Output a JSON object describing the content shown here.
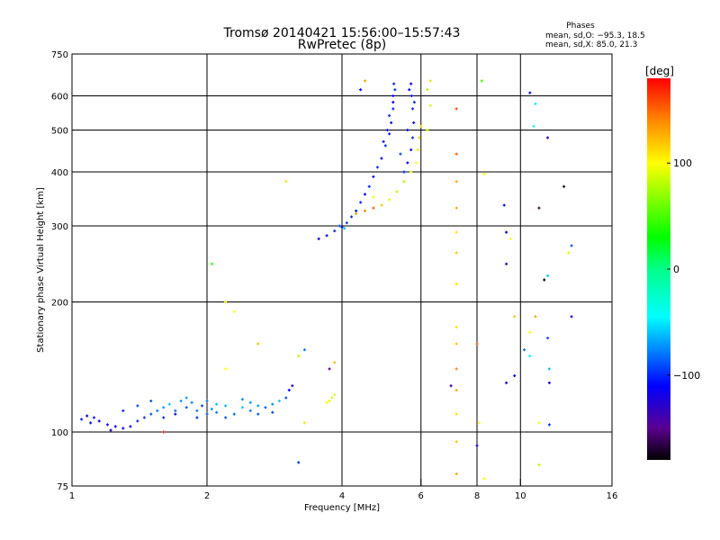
{
  "chart_data": {
    "type": "scatter",
    "title": "Tromsø 20140421 15:56:00–15:57:43",
    "subtitle": "RwPretec (8p)",
    "xlabel": "Frequency [MHz]",
    "ylabel": "Stationary phase Virtual Height [km]",
    "xscale": "log",
    "yscale": "log",
    "xlim": [
      1,
      16
    ],
    "ylim": [
      75,
      750
    ],
    "xticks": [
      1,
      2,
      4,
      6,
      8,
      10,
      16
    ],
    "yticks": [
      75,
      100,
      200,
      300,
      400,
      500,
      600,
      750
    ],
    "xgrid": [
      2,
      4,
      6,
      8,
      10
    ],
    "ygrid": [
      100,
      200,
      300,
      400,
      500,
      600
    ],
    "grid": true,
    "legend": {
      "title": "Phases",
      "lines": [
        "mean, sd,O: −95.3, 18.5",
        "mean, sd,X:  85.0, 21.3"
      ],
      "placement": "top-right"
    },
    "colorbar": {
      "label": "[deg]",
      "range": [
        -180,
        180
      ],
      "ticks": [
        100,
        0,
        -100
      ],
      "stops": [
        {
          "v": -180,
          "c": "#000000"
        },
        {
          "v": -150,
          "c": "#5a0090"
        },
        {
          "v": -110,
          "c": "#0000ff"
        },
        {
          "v": -45,
          "c": "#00ffff"
        },
        {
          "v": 0,
          "c": "#00ff88"
        },
        {
          "v": 30,
          "c": "#00ff00"
        },
        {
          "v": 100,
          "c": "#ffff00"
        },
        {
          "v": 140,
          "c": "#ff8800"
        },
        {
          "v": 180,
          "c": "#ff0000"
        }
      ]
    },
    "point_fields": [
      "frequency_MHz",
      "height_km",
      "phase_deg"
    ],
    "points": [
      [
        1.05,
        107,
        -100
      ],
      [
        1.08,
        109,
        -110
      ],
      [
        1.12,
        108,
        -105
      ],
      [
        1.15,
        106,
        -110
      ],
      [
        1.2,
        104,
        -115
      ],
      [
        1.25,
        103,
        -115
      ],
      [
        1.3,
        102,
        -115
      ],
      [
        1.35,
        103,
        -110
      ],
      [
        1.4,
        106,
        -100
      ],
      [
        1.45,
        108,
        -95
      ],
      [
        1.5,
        110,
        -90
      ],
      [
        1.55,
        112,
        -80
      ],
      [
        1.6,
        114,
        -70
      ],
      [
        1.65,
        116,
        -60
      ],
      [
        1.7,
        112,
        -80
      ],
      [
        1.75,
        118,
        -70
      ],
      [
        1.8,
        114,
        -90
      ],
      [
        1.85,
        117,
        -75
      ],
      [
        1.9,
        112,
        -80
      ],
      [
        1.95,
        115,
        -95
      ],
      [
        2.0,
        110,
        -85
      ],
      [
        2.05,
        113,
        -70
      ],
      [
        2.1,
        111,
        -80
      ],
      [
        2.2,
        115,
        -65
      ],
      [
        2.3,
        110,
        -85
      ],
      [
        2.4,
        114,
        -60
      ],
      [
        2.5,
        112,
        -80
      ],
      [
        2.6,
        115,
        -70
      ],
      [
        2.7,
        114,
        -85
      ],
      [
        2.8,
        116,
        -75
      ],
      [
        2.9,
        118,
        -60
      ],
      [
        3.0,
        120,
        -90
      ],
      [
        3.05,
        125,
        -110
      ],
      [
        3.1,
        128,
        -130
      ],
      [
        1.5,
        118,
        -90
      ],
      [
        1.6,
        108,
        -100
      ],
      [
        1.7,
        110,
        -110
      ],
      [
        1.8,
        120,
        -70
      ],
      [
        2.0,
        118,
        -80
      ],
      [
        2.2,
        108,
        -90
      ],
      [
        2.4,
        119,
        -75
      ],
      [
        1.3,
        112,
        -100
      ],
      [
        1.4,
        115,
        -90
      ],
      [
        2.6,
        110,
        -90
      ],
      [
        2.8,
        111,
        -95
      ],
      [
        1.1,
        105,
        -110
      ],
      [
        1.22,
        101,
        -120
      ],
      [
        1.9,
        108,
        -100
      ],
      [
        2.1,
        116,
        -60
      ],
      [
        2.5,
        117,
        -70
      ],
      [
        3.7,
        117,
        100
      ],
      [
        3.75,
        118,
        90
      ],
      [
        3.8,
        120,
        85
      ],
      [
        3.85,
        122,
        90
      ],
      [
        3.85,
        145,
        120
      ],
      [
        3.75,
        140,
        -150
      ],
      [
        3.2,
        150,
        80
      ],
      [
        3.3,
        155,
        -80
      ],
      [
        3.55,
        280,
        -110
      ],
      [
        3.7,
        285,
        -105
      ],
      [
        3.85,
        292,
        -100
      ],
      [
        4.0,
        298,
        -110
      ],
      [
        4.1,
        305,
        -95
      ],
      [
        4.2,
        315,
        -100
      ],
      [
        4.3,
        325,
        -105
      ],
      [
        4.4,
        340,
        -100
      ],
      [
        4.5,
        355,
        -110
      ],
      [
        4.6,
        370,
        -100
      ],
      [
        4.7,
        390,
        -105
      ],
      [
        4.8,
        410,
        -100
      ],
      [
        4.9,
        430,
        -110
      ],
      [
        5.0,
        460,
        -100
      ],
      [
        5.1,
        490,
        -105
      ],
      [
        5.15,
        520,
        -110
      ],
      [
        5.2,
        560,
        -100
      ],
      [
        5.2,
        600,
        -105
      ],
      [
        5.22,
        640,
        -100
      ],
      [
        5.25,
        620,
        -95
      ],
      [
        5.2,
        580,
        -110
      ],
      [
        5.1,
        540,
        -100
      ],
      [
        5.05,
        500,
        -110
      ],
      [
        4.95,
        470,
        -105
      ],
      [
        3.95,
        300,
        -90
      ],
      [
        4.05,
        296,
        -60
      ],
      [
        5.7,
        640,
        -110
      ],
      [
        5.72,
        600,
        -105
      ],
      [
        5.75,
        560,
        -100
      ],
      [
        5.78,
        520,
        -110
      ],
      [
        5.75,
        480,
        -100
      ],
      [
        5.7,
        450,
        -105
      ],
      [
        5.6,
        420,
        -110
      ],
      [
        5.5,
        400,
        -100
      ],
      [
        5.4,
        440,
        -90
      ],
      [
        5.65,
        620,
        -105
      ],
      [
        5.8,
        580,
        -100
      ],
      [
        5.6,
        500,
        -110
      ],
      [
        4.3,
        320,
        130
      ],
      [
        4.5,
        325,
        140
      ],
      [
        4.7,
        330,
        150
      ],
      [
        4.9,
        335,
        120
      ],
      [
        5.1,
        345,
        90
      ],
      [
        5.3,
        360,
        80
      ],
      [
        5.5,
        380,
        75
      ],
      [
        5.7,
        400,
        90
      ],
      [
        5.85,
        420,
        100
      ],
      [
        5.9,
        450,
        110
      ],
      [
        5.95,
        480,
        120
      ],
      [
        6.0,
        510,
        110
      ],
      [
        6.2,
        500,
        80
      ],
      [
        6.3,
        570,
        90
      ],
      [
        6.2,
        620,
        80
      ],
      [
        6.3,
        650,
        110
      ],
      [
        4.7,
        350,
        90
      ],
      [
        7.2,
        80,
        130
      ],
      [
        7.2,
        95,
        120
      ],
      [
        7.2,
        110,
        110
      ],
      [
        7.2,
        125,
        130
      ],
      [
        7.2,
        140,
        140
      ],
      [
        7.2,
        160,
        120
      ],
      [
        7.2,
        175,
        110
      ],
      [
        7.2,
        220,
        110
      ],
      [
        7.2,
        260,
        120
      ],
      [
        7.2,
        290,
        110
      ],
      [
        7.2,
        330,
        130
      ],
      [
        7.2,
        380,
        130
      ],
      [
        7.2,
        440,
        150
      ],
      [
        7.2,
        560,
        160
      ],
      [
        8.2,
        650,
        50
      ],
      [
        8.1,
        105,
        100
      ],
      [
        8.0,
        160,
        150
      ],
      [
        8.3,
        395,
        100
      ],
      [
        8.3,
        78,
        100
      ],
      [
        9.3,
        290,
        -110
      ],
      [
        9.3,
        245,
        -120
      ],
      [
        9.2,
        335,
        -110
      ],
      [
        9.3,
        130,
        -120
      ],
      [
        9.5,
        280,
        100
      ],
      [
        9.7,
        185,
        120
      ],
      [
        9.7,
        135,
        -110
      ],
      [
        10.5,
        610,
        -110
      ],
      [
        10.8,
        575,
        -50
      ],
      [
        10.7,
        510,
        -40
      ],
      [
        11,
        330,
        -160
      ],
      [
        10.5,
        170,
        100
      ],
      [
        10.8,
        185,
        130
      ],
      [
        11,
        105,
        100
      ],
      [
        11,
        84,
        80
      ],
      [
        10.2,
        155,
        -80
      ],
      [
        10.5,
        150,
        -40
      ],
      [
        11.5,
        480,
        -120
      ],
      [
        11.5,
        230,
        -60
      ],
      [
        11.3,
        225,
        -180
      ],
      [
        11.6,
        130,
        -120
      ],
      [
        11.6,
        140,
        -60
      ],
      [
        11.5,
        165,
        -90
      ],
      [
        11.6,
        104,
        -100
      ],
      [
        12.5,
        370,
        -170
      ],
      [
        13,
        270,
        -90
      ],
      [
        12.8,
        260,
        90
      ],
      [
        13,
        185,
        -120
      ],
      [
        7,
        128,
        -140
      ],
      [
        8,
        93,
        -120
      ],
      [
        3.2,
        85,
        -100
      ],
      [
        3.3,
        105,
        110
      ],
      [
        2.2,
        200,
        110
      ],
      [
        2.05,
        245,
        40
      ],
      [
        2.3,
        190,
        100
      ],
      [
        2.2,
        140,
        100
      ],
      [
        2.6,
        160,
        120
      ],
      [
        3.0,
        380,
        110
      ],
      [
        1.6,
        100,
        170
      ],
      [
        4.4,
        620,
        -110
      ],
      [
        4.5,
        650,
        130
      ]
    ]
  }
}
